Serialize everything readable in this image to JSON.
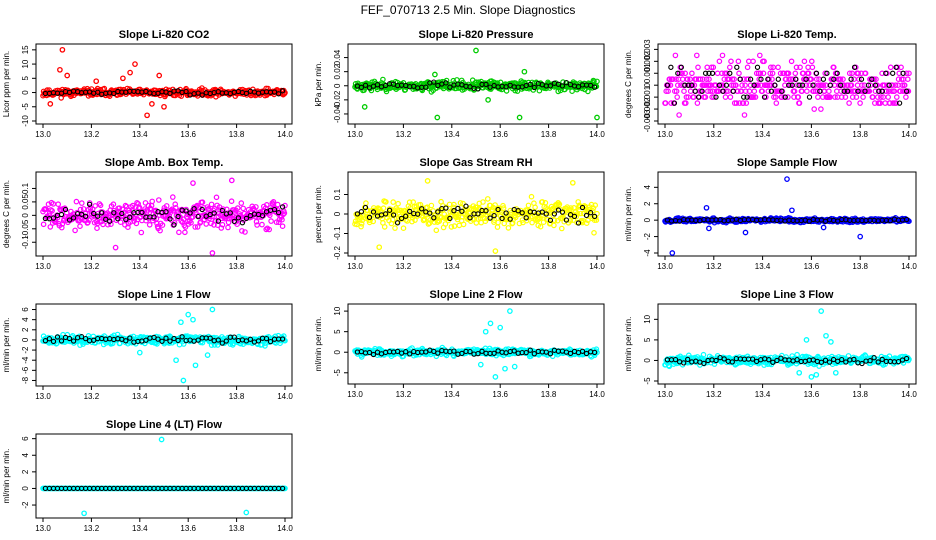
{
  "main_title": "FEF_070713  2.5 Min. Slope Diagnostics",
  "colors": {
    "red": "#ff0000",
    "green": "#00cc00",
    "magenta": "#ff00ff",
    "yellow": "#ffff00",
    "blue": "#0000ff",
    "cyan": "#00ffff",
    "black": "#000000"
  },
  "chart_data": [
    {
      "type": "scatter",
      "title": "Slope Li-820 CO2",
      "ylabel": "Licor ppm per min.",
      "color": "red",
      "xlim": [
        13.0,
        14.0
      ],
      "xticks": [
        "13.0",
        "13.2",
        "13.4",
        "13.6",
        "13.8",
        "14.0"
      ],
      "ylim": [
        -10,
        16
      ],
      "yticks": [
        -10,
        -5,
        0,
        5,
        10,
        15
      ],
      "spread": 1.5,
      "outliers": [
        [
          13.08,
          15
        ],
        [
          13.07,
          8
        ],
        [
          13.1,
          6
        ],
        [
          13.38,
          10
        ],
        [
          13.36,
          7
        ],
        [
          13.33,
          5
        ],
        [
          13.43,
          -8
        ],
        [
          13.45,
          -4
        ],
        [
          13.5,
          -5
        ],
        [
          13.03,
          -4
        ],
        [
          13.22,
          4
        ],
        [
          13.48,
          6
        ]
      ],
      "seed": 11
    },
    {
      "type": "scatter",
      "title": "Slope Li-820 Pressure",
      "ylabel": "kPa per min.",
      "color": "green",
      "xlim": [
        13.0,
        14.0
      ],
      "xticks": [
        "13.0",
        "13.2",
        "13.4",
        "13.6",
        "13.8",
        "14.0"
      ],
      "ylim": [
        -0.05,
        0.055
      ],
      "yticks": [
        -0.04,
        -0.02,
        0.0,
        0.02,
        0.04
      ],
      "spread": 0.008,
      "outliers": [
        [
          13.5,
          0.05
        ],
        [
          13.33,
          0.016
        ],
        [
          13.04,
          -0.03
        ],
        [
          13.34,
          -0.045
        ],
        [
          13.68,
          -0.045
        ],
        [
          14.0,
          -0.045
        ],
        [
          13.7,
          0.02
        ],
        [
          13.55,
          -0.02
        ]
      ],
      "seed": 23
    },
    {
      "type": "levels",
      "title": "Slope Li-820 Temp.",
      "ylabel": "degrees C per min.",
      "color": "magenta",
      "xlim": [
        13.0,
        14.0
      ],
      "xticks": [
        "13.0",
        "13.2",
        "13.4",
        "13.6",
        "13.8",
        "14.0"
      ],
      "ylim": [
        -0.003,
        0.0032
      ],
      "yticks": [
        -0.003,
        -0.002,
        -0.001,
        0.0,
        0.001,
        0.002,
        0.003
      ],
      "step": 0.0005,
      "seed": 37
    },
    {
      "type": "scatter",
      "title": "Slope Amb. Box Temp.",
      "ylabel": "degrees C per min.",
      "color": "magenta",
      "xlim": [
        13.0,
        14.0
      ],
      "xticks": [
        "13.0",
        "13.2",
        "13.4",
        "13.6",
        "13.8",
        "14.0"
      ],
      "ylim": [
        -0.14,
        0.15
      ],
      "yticks": [
        -0.1,
        -0.05,
        0.0,
        0.05,
        0.1
      ],
      "spread": 0.06,
      "outliers": [
        [
          13.7,
          -0.14
        ],
        [
          13.78,
          0.13
        ],
        [
          13.62,
          0.12
        ],
        [
          13.3,
          -0.12
        ]
      ],
      "seed": 41
    },
    {
      "type": "scatter",
      "title": "Slope Gas Stream RH",
      "ylabel": "percent per min.",
      "color": "yellow",
      "xlim": [
        13.0,
        14.0
      ],
      "xticks": [
        "13.0",
        "13.2",
        "13.4",
        "13.6",
        "13.8",
        "14.0"
      ],
      "ylim": [
        -0.2,
        0.2
      ],
      "yticks": [
        -0.2,
        -0.1,
        0.0,
        0.1
      ],
      "spread": 0.08,
      "outliers": [
        [
          13.58,
          -0.19
        ],
        [
          13.3,
          0.17
        ],
        [
          13.9,
          0.16
        ],
        [
          13.1,
          -0.17
        ]
      ],
      "seed": 53
    },
    {
      "type": "scatter",
      "title": "Slope Sample Flow",
      "ylabel": "ml/min per min.",
      "color": "blue",
      "xlim": [
        13.0,
        14.0
      ],
      "xticks": [
        "13.0",
        "13.2",
        "13.4",
        "13.6",
        "13.8",
        "14.0"
      ],
      "ylim": [
        -4,
        5.5
      ],
      "yticks": [
        -4,
        -2,
        0,
        2,
        4
      ],
      "spread": 0.3,
      "outliers": [
        [
          13.5,
          5.0
        ],
        [
          13.17,
          1.5
        ],
        [
          13.03,
          -4.0
        ],
        [
          13.8,
          -2.0
        ],
        [
          13.33,
          -1.5
        ],
        [
          13.52,
          1.2
        ],
        [
          13.65,
          -0.9
        ],
        [
          13.18,
          -1.0
        ]
      ],
      "seed": 67
    },
    {
      "type": "scatter",
      "title": "Slope Line 1 Flow",
      "ylabel": "ml/min per min.",
      "color": "cyan",
      "xlim": [
        13.0,
        14.0
      ],
      "xticks": [
        "13.0",
        "13.2",
        "13.4",
        "13.6",
        "13.8",
        "14.0"
      ],
      "ylim": [
        -8.5,
        6.5
      ],
      "yticks": [
        -8,
        -6,
        -4,
        -2,
        0,
        2,
        4,
        6
      ],
      "spread": 1.0,
      "outliers": [
        [
          13.7,
          6
        ],
        [
          13.58,
          -8
        ],
        [
          13.6,
          5
        ],
        [
          13.62,
          4
        ],
        [
          13.57,
          3.5
        ],
        [
          13.63,
          -5
        ],
        [
          13.55,
          -4
        ],
        [
          13.68,
          -3
        ],
        [
          13.4,
          -2.5
        ]
      ],
      "seed": 71
    },
    {
      "type": "scatter",
      "title": "Slope Line 2 Flow",
      "ylabel": "ml/min per min.",
      "color": "cyan",
      "xlim": [
        13.0,
        14.0
      ],
      "xticks": [
        "13.0",
        "13.2",
        "13.4",
        "13.6",
        "13.8",
        "14.0"
      ],
      "ylim": [
        -7,
        11
      ],
      "yticks": [
        -5,
        0,
        5,
        10
      ],
      "spread": 1.0,
      "outliers": [
        [
          13.64,
          10
        ],
        [
          13.58,
          -6
        ],
        [
          13.56,
          7
        ],
        [
          13.6,
          6
        ],
        [
          13.62,
          -4
        ],
        [
          13.54,
          5
        ],
        [
          13.66,
          -3.5
        ],
        [
          13.52,
          -3
        ]
      ],
      "seed": 83
    },
    {
      "type": "scatter",
      "title": "Slope Line 3 Flow",
      "ylabel": "ml/min per min.",
      "color": "cyan",
      "xlim": [
        13.0,
        14.0
      ],
      "xticks": [
        "13.0",
        "13.2",
        "13.4",
        "13.6",
        "13.8",
        "14.0"
      ],
      "ylim": [
        -5,
        13
      ],
      "yticks": [
        -5,
        0,
        5,
        10
      ],
      "spread": 1.3,
      "outliers": [
        [
          13.64,
          12
        ],
        [
          13.66,
          6
        ],
        [
          13.6,
          -4
        ],
        [
          13.62,
          -3.5
        ],
        [
          13.58,
          5
        ],
        [
          13.55,
          -3
        ],
        [
          13.68,
          4.5
        ],
        [
          13.7,
          -3
        ]
      ],
      "seed": 97
    },
    {
      "type": "scatter",
      "title": "Slope Line 4 (LT) Flow",
      "ylabel": "ml/min per min.",
      "color": "cyan",
      "xlim": [
        13.0,
        14.0
      ],
      "xticks": [
        "13.0",
        "13.2",
        "13.4",
        "13.6",
        "13.8",
        "14.0"
      ],
      "ylim": [
        -3.2,
        6.2
      ],
      "yticks": [
        -2,
        0,
        2,
        4,
        6
      ],
      "spread": 0.0,
      "outliers": [
        [
          13.49,
          5.9
        ],
        [
          13.17,
          -3.0
        ],
        [
          13.84,
          -2.9
        ]
      ],
      "seed": 101
    }
  ]
}
